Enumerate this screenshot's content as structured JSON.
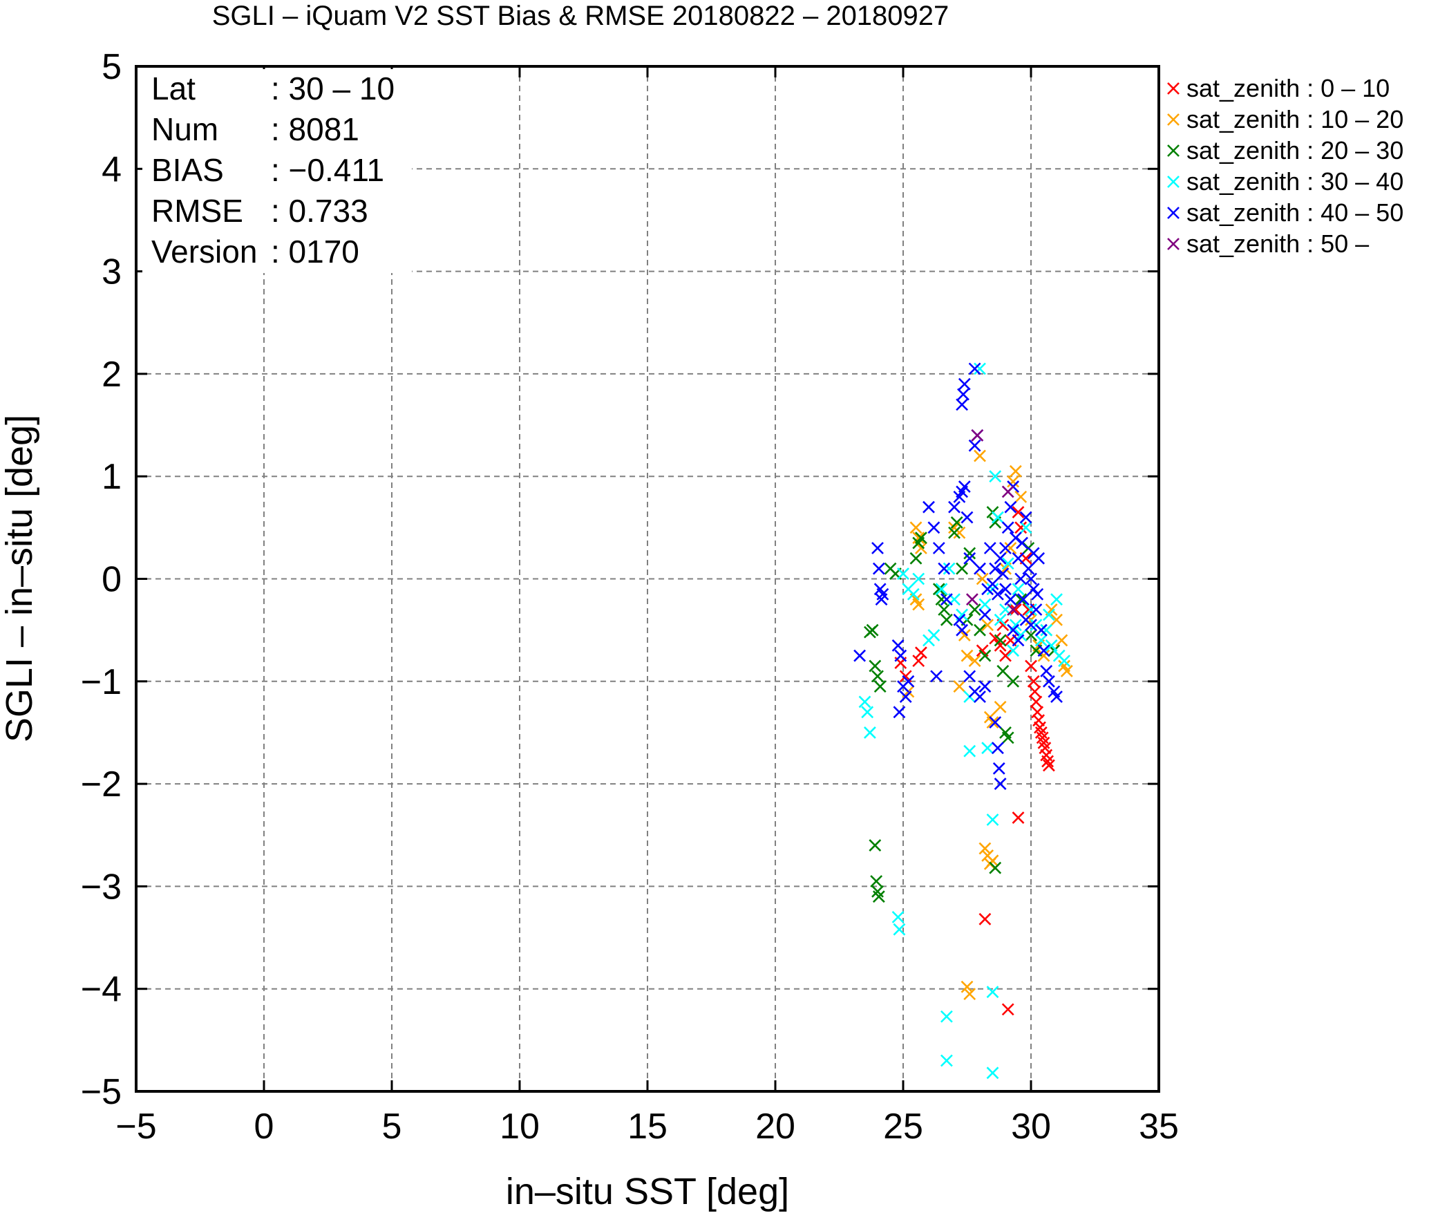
{
  "chart_data": {
    "type": "scatter",
    "title": "SGLI – iQuam V2 SST Bias & RMSE 20180822 – 20180927",
    "xlabel": "in–situ SST [deg]",
    "ylabel": "SGLI – in–situ [deg]",
    "xlim": [
      -5,
      35
    ],
    "ylim": [
      -5,
      5
    ],
    "xticks": [
      -5,
      0,
      5,
      10,
      15,
      20,
      25,
      30,
      35
    ],
    "yticks": [
      -5,
      -4,
      -3,
      -2,
      -1,
      0,
      1,
      2,
      3,
      4,
      5
    ],
    "xtick_labels": [
      "−5",
      "0",
      "5",
      "10",
      "15",
      "20",
      "25",
      "30",
      "35"
    ],
    "ytick_labels": [
      "−5",
      "−4",
      "−3",
      "−2",
      "−1",
      "0",
      "1",
      "2",
      "3",
      "4",
      "5"
    ],
    "grid": true,
    "legend_position": "right-outside-top",
    "stats": [
      {
        "key": "Lat",
        "value": ": 30 – 10"
      },
      {
        "key": "Num",
        "value": ": 8081"
      },
      {
        "key": "BIAS",
        "value": ": −0.411"
      },
      {
        "key": "RMSE",
        "value": ": 0.733"
      },
      {
        "key": "Version",
        "value": ": 0170"
      }
    ],
    "series": [
      {
        "name": "sat_zenith :  0 – 10",
        "color": "#ff0000",
        "points": [
          [
            24.9,
            -0.82
          ],
          [
            25.1,
            -0.95
          ],
          [
            25.6,
            -0.8
          ],
          [
            25.7,
            -0.72
          ],
          [
            28.1,
            -0.7
          ],
          [
            28.6,
            -0.58
          ],
          [
            28.8,
            -0.65
          ],
          [
            29.0,
            -0.75
          ],
          [
            29.2,
            -0.6
          ],
          [
            29.5,
            0.65
          ],
          [
            29.6,
            0.5
          ],
          [
            29.8,
            0.2
          ],
          [
            29.9,
            -0.3
          ],
          [
            30.0,
            -0.85
          ],
          [
            30.1,
            -1.0
          ],
          [
            30.15,
            -1.1
          ],
          [
            30.2,
            -1.2
          ],
          [
            30.25,
            -1.3
          ],
          [
            30.3,
            -1.38
          ],
          [
            30.35,
            -1.45
          ],
          [
            30.4,
            -1.5
          ],
          [
            30.45,
            -1.55
          ],
          [
            30.5,
            -1.6
          ],
          [
            30.55,
            -1.65
          ],
          [
            30.6,
            -1.72
          ],
          [
            30.65,
            -1.78
          ],
          [
            30.7,
            -1.82
          ],
          [
            29.5,
            -2.33
          ],
          [
            28.2,
            -3.32
          ],
          [
            29.1,
            -4.2
          ],
          [
            28.9,
            -0.45
          ],
          [
            29.4,
            -0.3
          ]
        ]
      },
      {
        "name": "sat_zenith : 10 – 20",
        "color": "#ffa500",
        "points": [
          [
            25.2,
            -1.1
          ],
          [
            25.5,
            0.5
          ],
          [
            25.6,
            0.4
          ],
          [
            25.7,
            0.3
          ],
          [
            25.5,
            -0.2
          ],
          [
            25.6,
            -0.25
          ],
          [
            27.0,
            0.5
          ],
          [
            27.2,
            0.45
          ],
          [
            27.4,
            -0.55
          ],
          [
            27.5,
            -0.75
          ],
          [
            27.8,
            -0.8
          ],
          [
            28.0,
            1.2
          ],
          [
            28.1,
            0.0
          ],
          [
            28.3,
            -0.45
          ],
          [
            28.4,
            -1.35
          ],
          [
            28.5,
            -1.4
          ],
          [
            29.0,
            0.1
          ],
          [
            29.2,
            0.3
          ],
          [
            29.3,
            0.95
          ],
          [
            29.4,
            1.05
          ],
          [
            29.6,
            0.8
          ],
          [
            30.0,
            -0.4
          ],
          [
            30.3,
            -0.65
          ],
          [
            30.5,
            -0.75
          ],
          [
            30.8,
            -0.3
          ],
          [
            31.0,
            -0.4
          ],
          [
            31.2,
            -0.6
          ],
          [
            31.3,
            -0.85
          ],
          [
            31.4,
            -0.9
          ],
          [
            28.2,
            -2.63
          ],
          [
            28.3,
            -2.7
          ],
          [
            28.4,
            -2.78
          ],
          [
            28.5,
            -2.75
          ],
          [
            27.5,
            -3.98
          ],
          [
            27.6,
            -4.05
          ],
          [
            27.2,
            -1.05
          ],
          [
            28.8,
            -1.25
          ],
          [
            30.6,
            -0.5
          ]
        ]
      },
      {
        "name": "sat_zenith : 20 – 30",
        "color": "#008000",
        "points": [
          [
            23.7,
            -0.52
          ],
          [
            23.8,
            -0.5
          ],
          [
            23.9,
            -0.85
          ],
          [
            24.0,
            -0.95
          ],
          [
            24.1,
            -1.05
          ],
          [
            24.5,
            0.1
          ],
          [
            24.7,
            0.05
          ],
          [
            25.5,
            0.2
          ],
          [
            25.6,
            0.35
          ],
          [
            25.7,
            0.4
          ],
          [
            26.4,
            -0.1
          ],
          [
            26.5,
            -0.2
          ],
          [
            26.6,
            -0.3
          ],
          [
            26.7,
            -0.4
          ],
          [
            27.0,
            0.45
          ],
          [
            27.1,
            0.55
          ],
          [
            27.3,
            0.1
          ],
          [
            27.5,
            -0.4
          ],
          [
            27.6,
            0.25
          ],
          [
            27.8,
            -0.3
          ],
          [
            28.0,
            -0.5
          ],
          [
            28.2,
            -0.75
          ],
          [
            28.5,
            0.65
          ],
          [
            28.6,
            0.55
          ],
          [
            28.8,
            -0.6
          ],
          [
            28.9,
            -0.9
          ],
          [
            29.0,
            -1.5
          ],
          [
            29.1,
            -1.55
          ],
          [
            29.3,
            -1.0
          ],
          [
            29.6,
            -0.2
          ],
          [
            30.0,
            -0.55
          ],
          [
            30.2,
            -0.7
          ],
          [
            30.4,
            -0.5
          ],
          [
            23.9,
            -2.6
          ],
          [
            23.95,
            -2.95
          ],
          [
            24.0,
            -3.05
          ],
          [
            24.05,
            -3.1
          ],
          [
            28.6,
            -2.82
          ],
          [
            29.9,
            0.3
          ],
          [
            30.9,
            -0.7
          ]
        ]
      },
      {
        "name": "sat_zenith : 30 – 40",
        "color": "#00ffff",
        "points": [
          [
            23.5,
            -1.2
          ],
          [
            23.6,
            -1.3
          ],
          [
            23.7,
            -1.5
          ],
          [
            25.0,
            0.05
          ],
          [
            25.2,
            -0.1
          ],
          [
            25.4,
            -0.15
          ],
          [
            25.6,
            0.0
          ],
          [
            26.0,
            -0.6
          ],
          [
            26.2,
            -0.55
          ],
          [
            26.5,
            -0.1
          ],
          [
            26.8,
            0.1
          ],
          [
            27.0,
            -0.2
          ],
          [
            27.3,
            -0.35
          ],
          [
            27.6,
            -1.15
          ],
          [
            28.0,
            2.05
          ],
          [
            28.5,
            -0.1
          ],
          [
            28.6,
            1.0
          ],
          [
            28.7,
            0.6
          ],
          [
            28.8,
            -0.4
          ],
          [
            29.0,
            -0.3
          ],
          [
            29.2,
            -0.2
          ],
          [
            29.4,
            -0.45
          ],
          [
            29.6,
            -0.55
          ],
          [
            29.8,
            0.5
          ],
          [
            30.0,
            -0.3
          ],
          [
            30.2,
            -0.45
          ],
          [
            30.4,
            -0.6
          ],
          [
            30.6,
            -0.5
          ],
          [
            30.8,
            -0.65
          ],
          [
            31.1,
            -0.75
          ],
          [
            31.3,
            -0.8
          ],
          [
            27.6,
            -1.68
          ],
          [
            28.3,
            -1.65
          ],
          [
            28.5,
            -2.35
          ],
          [
            24.8,
            -3.3
          ],
          [
            24.85,
            -3.42
          ],
          [
            26.7,
            -4.27
          ],
          [
            26.7,
            -4.7
          ],
          [
            28.5,
            -4.03
          ],
          [
            28.5,
            -4.82
          ],
          [
            29.5,
            -0.1
          ],
          [
            29.1,
            0.15
          ],
          [
            30.7,
            -0.35
          ],
          [
            29.3,
            -0.7
          ],
          [
            31.0,
            -0.2
          ],
          [
            28.2,
            -0.25
          ]
        ]
      },
      {
        "name": "sat_zenith : 40 – 50",
        "color": "#0000ff",
        "points": [
          [
            23.3,
            -0.75
          ],
          [
            24.0,
            0.3
          ],
          [
            24.05,
            0.1
          ],
          [
            24.1,
            -0.1
          ],
          [
            24.15,
            -0.2
          ],
          [
            24.2,
            -0.15
          ],
          [
            24.8,
            -0.65
          ],
          [
            24.9,
            -0.75
          ],
          [
            24.85,
            -1.3
          ],
          [
            25.0,
            -1.05
          ],
          [
            25.1,
            -1.15
          ],
          [
            25.2,
            -1.0
          ],
          [
            26.0,
            0.7
          ],
          [
            26.2,
            0.5
          ],
          [
            26.4,
            0.3
          ],
          [
            26.6,
            0.1
          ],
          [
            26.7,
            -0.2
          ],
          [
            26.3,
            -0.95
          ],
          [
            27.0,
            0.7
          ],
          [
            27.2,
            0.8
          ],
          [
            27.3,
            0.85
          ],
          [
            27.4,
            0.9
          ],
          [
            27.5,
            0.6
          ],
          [
            27.2,
            -0.4
          ],
          [
            27.3,
            -0.5
          ],
          [
            27.6,
            -0.95
          ],
          [
            27.8,
            -1.1
          ],
          [
            28.0,
            -1.15
          ],
          [
            28.2,
            -1.05
          ],
          [
            27.6,
            0.2
          ],
          [
            27.8,
            1.3
          ],
          [
            27.9,
            1.4
          ],
          [
            27.3,
            1.7
          ],
          [
            27.35,
            1.8
          ],
          [
            27.4,
            1.9
          ],
          [
            27.8,
            2.05
          ],
          [
            28.0,
            0.1
          ],
          [
            28.3,
            -0.1
          ],
          [
            28.5,
            -0.05
          ],
          [
            28.6,
            -1.4
          ],
          [
            28.7,
            -1.65
          ],
          [
            28.75,
            -1.85
          ],
          [
            28.8,
            -2.0
          ],
          [
            28.8,
            0.2
          ],
          [
            29.0,
            0.3
          ],
          [
            29.1,
            0.5
          ],
          [
            29.2,
            0.7
          ],
          [
            29.3,
            0.9
          ],
          [
            29.4,
            0.4
          ],
          [
            29.5,
            0.2
          ],
          [
            29.6,
            0.0
          ],
          [
            29.7,
            -0.2
          ],
          [
            29.8,
            -0.4
          ],
          [
            29.9,
            0.1
          ],
          [
            30.0,
            0.0
          ],
          [
            30.1,
            -0.1
          ],
          [
            30.2,
            -0.3
          ],
          [
            30.3,
            0.2
          ],
          [
            30.4,
            -0.5
          ],
          [
            30.5,
            -0.7
          ],
          [
            30.6,
            -0.9
          ],
          [
            30.7,
            -1.0
          ],
          [
            30.9,
            -1.1
          ],
          [
            31.0,
            -1.15
          ],
          [
            29.0,
            -0.1
          ],
          [
            29.2,
            -0.2
          ],
          [
            28.9,
            0.05
          ],
          [
            29.5,
            -0.6
          ],
          [
            28.4,
            0.3
          ],
          [
            28.6,
            0.1
          ],
          [
            29.8,
            0.6
          ],
          [
            30.1,
            0.25
          ],
          [
            28.2,
            -0.35
          ],
          [
            29.3,
            -0.5
          ],
          [
            30.0,
            -0.45
          ],
          [
            28.7,
            -0.15
          ],
          [
            29.65,
            0.35
          ],
          [
            30.25,
            -0.15
          ]
        ]
      },
      {
        "name": "sat_zenith : 50 –",
        "color": "#800080",
        "points": [
          [
            27.9,
            1.4
          ],
          [
            29.1,
            0.85
          ],
          [
            29.3,
            -0.3
          ],
          [
            27.7,
            -0.2
          ]
        ]
      }
    ]
  }
}
